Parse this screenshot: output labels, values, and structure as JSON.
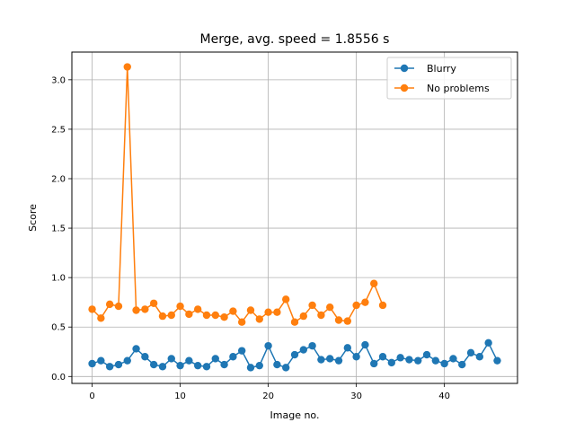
{
  "chart_data": {
    "type": "line",
    "title": "Merge, avg. speed = 1.8556 s",
    "xlabel": "Image no.",
    "ylabel": "Score",
    "xlim": [
      -2.3,
      48.3
    ],
    "ylim": [
      -0.07,
      3.28
    ],
    "xticks": [
      0,
      10,
      20,
      30,
      40
    ],
    "yticks": [
      0.0,
      0.5,
      1.0,
      1.5,
      2.0,
      2.5,
      3.0
    ],
    "xtick_labels": [
      "0",
      "10",
      "20",
      "30",
      "40"
    ],
    "ytick_labels": [
      "0.0",
      "0.5",
      "1.0",
      "1.5",
      "2.0",
      "2.5",
      "3.0"
    ],
    "grid": true,
    "legend_position": "top-right",
    "series": [
      {
        "name": "Blurry",
        "color": "#1f77b4",
        "marker": "circle",
        "values": [
          0.13,
          0.16,
          0.1,
          0.12,
          0.16,
          0.28,
          0.2,
          0.12,
          0.1,
          0.18,
          0.11,
          0.16,
          0.11,
          0.1,
          0.18,
          0.12,
          0.2,
          0.26,
          0.09,
          0.11,
          0.31,
          0.12,
          0.09,
          0.22,
          0.27,
          0.31,
          0.17,
          0.18,
          0.16,
          0.29,
          0.2,
          0.32,
          0.13,
          0.2,
          0.14,
          0.19,
          0.17,
          0.16,
          0.22,
          0.16,
          0.13,
          0.18,
          0.12,
          0.24,
          0.2,
          0.34,
          0.16
        ]
      },
      {
        "name": "No problems",
        "color": "#ff7f0e",
        "marker": "circle",
        "values": [
          0.68,
          0.59,
          0.73,
          0.71,
          3.13,
          0.67,
          0.68,
          0.74,
          0.61,
          0.62,
          0.71,
          0.63,
          0.68,
          0.62,
          0.62,
          0.6,
          0.66,
          0.55,
          0.67,
          0.58,
          0.65,
          0.65,
          0.78,
          0.55,
          0.61,
          0.72,
          0.62,
          0.7,
          0.57,
          0.56,
          0.72,
          0.75,
          0.94,
          0.72
        ]
      }
    ]
  }
}
